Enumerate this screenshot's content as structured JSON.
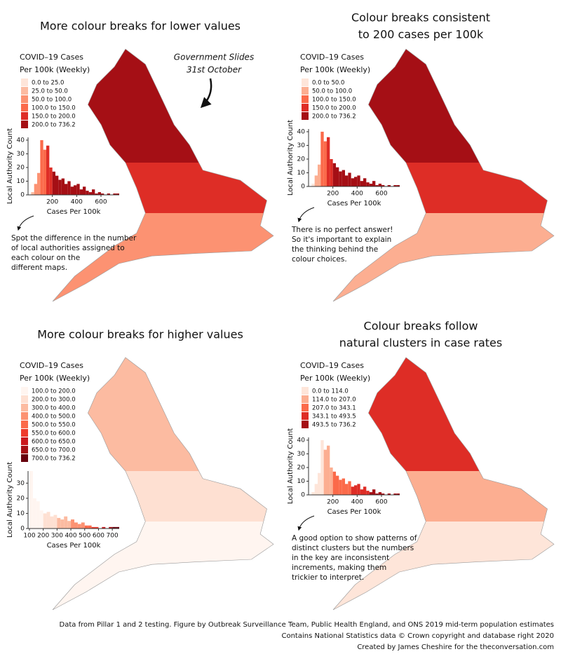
{
  "panels": [
    {
      "title": [
        "More colour breaks for lower values"
      ],
      "legend_title": [
        "COVID–19 Cases",
        "Per 100k (Weekly)"
      ],
      "legend": [
        {
          "label": "0.0 to 25.0",
          "color": "#fee5d9"
        },
        {
          "label": "25.0 to 50.0",
          "color": "#fcbba1"
        },
        {
          "label": "50.0 to 100.0",
          "color": "#fc9272"
        },
        {
          "label": "100.0 to 150.0",
          "color": "#fb6a4a"
        },
        {
          "label": "150.0 to 200.0",
          "color": "#de2d26"
        },
        {
          "label": "200.0 to 736.2",
          "color": "#a50f15"
        }
      ],
      "callout": [
        "Government Slides",
        "31st October"
      ],
      "histogram": {
        "type": "histogram",
        "xlabel": "Cases Per 100k",
        "ylabel": "Local Authority Count",
        "bins": [
          25,
          50,
          75,
          100,
          125,
          150,
          175,
          200,
          225,
          250,
          275,
          300,
          325,
          350,
          375,
          400,
          425,
          450,
          475,
          500,
          525,
          550,
          575,
          600,
          625,
          650,
          675,
          700,
          725,
          750
        ],
        "counts": [
          2,
          8,
          16,
          40,
          33,
          36,
          20,
          17,
          14,
          11,
          12,
          8,
          10,
          6,
          7,
          8,
          4,
          6,
          3,
          2,
          4,
          1,
          2,
          1,
          0,
          1,
          0,
          1,
          1
        ],
        "bar_colors": [
          "#fcbba1",
          "#fc9272",
          "#fc9272",
          "#fb6a4a",
          "#fb6a4a",
          "#de2d26",
          "#de2d26",
          "#a50f15",
          "#a50f15",
          "#a50f15",
          "#a50f15",
          "#a50f15",
          "#a50f15",
          "#a50f15",
          "#a50f15",
          "#a50f15",
          "#a50f15",
          "#a50f15",
          "#a50f15",
          "#a50f15",
          "#a50f15",
          "#a50f15",
          "#a50f15",
          "#a50f15",
          "#a50f15",
          "#a50f15",
          "#a50f15",
          "#a50f15",
          "#a50f15"
        ],
        "xlim": [
          0,
          750
        ],
        "ylim": [
          0,
          42
        ],
        "xticks": [
          200,
          400,
          600
        ],
        "yticks": [
          0,
          10,
          20,
          30,
          40
        ]
      },
      "note": [
        "Spot the difference in the number",
        "of local authorities assigned to",
        "each colour on the",
        "different maps."
      ]
    },
    {
      "title": [
        "Colour breaks consistent",
        "to 200 cases per 100k"
      ],
      "legend_title": [
        "COVID–19 Cases",
        "Per 100k (Weekly)"
      ],
      "legend": [
        {
          "label": "0.0 to 50.0",
          "color": "#fee5d9"
        },
        {
          "label": "50.0 to 100.0",
          "color": "#fcae91"
        },
        {
          "label": "100.0 to 150.0",
          "color": "#fb6a4a"
        },
        {
          "label": "150.0 to 200.0",
          "color": "#de2d26"
        },
        {
          "label": "200.0 to 736.2",
          "color": "#a50f15"
        }
      ],
      "histogram": {
        "type": "histogram",
        "xlabel": "Cases Per 100k",
        "ylabel": "Local Authority Count",
        "bins": [
          25,
          50,
          75,
          100,
          125,
          150,
          175,
          200,
          225,
          250,
          275,
          300,
          325,
          350,
          375,
          400,
          425,
          450,
          475,
          500,
          525,
          550,
          575,
          600,
          625,
          650,
          675,
          700,
          725,
          750
        ],
        "counts": [
          2,
          8,
          16,
          40,
          33,
          36,
          20,
          17,
          14,
          11,
          12,
          8,
          10,
          6,
          7,
          8,
          4,
          6,
          3,
          2,
          4,
          1,
          2,
          1,
          0,
          1,
          0,
          1,
          1
        ],
        "bar_colors": [
          "#fee5d9",
          "#fcae91",
          "#fcae91",
          "#fb6a4a",
          "#fb6a4a",
          "#de2d26",
          "#de2d26",
          "#a50f15",
          "#a50f15",
          "#a50f15",
          "#a50f15",
          "#a50f15",
          "#a50f15",
          "#a50f15",
          "#a50f15",
          "#a50f15",
          "#a50f15",
          "#a50f15",
          "#a50f15",
          "#a50f15",
          "#a50f15",
          "#a50f15",
          "#a50f15",
          "#a50f15",
          "#a50f15",
          "#a50f15",
          "#a50f15",
          "#a50f15",
          "#a50f15"
        ],
        "xlim": [
          0,
          750
        ],
        "ylim": [
          0,
          42
        ],
        "xticks": [
          200,
          400,
          600
        ],
        "yticks": [
          0,
          10,
          20,
          30,
          40
        ]
      },
      "note": [
        "There is no perfect answer!",
        "So it's important to explain",
        "the thinking behind the",
        "colour choices."
      ]
    },
    {
      "title": [
        "More colour breaks for higher values"
      ],
      "legend_title": [
        "COVID–19 Cases",
        "Per 100k (Weekly)"
      ],
      "legend": [
        {
          "label": "100.0 to 200.0",
          "color": "#fff5f0"
        },
        {
          "label": "200.0 to 300.0",
          "color": "#fee0d2"
        },
        {
          "label": "300.0 to 400.0",
          "color": "#fcbba1"
        },
        {
          "label": "400.0 to 500.0",
          "color": "#fc9272"
        },
        {
          "label": "500.0 to 550.0",
          "color": "#fb6a4a"
        },
        {
          "label": "550.0 to 600.0",
          "color": "#ef3b2c"
        },
        {
          "label": "600.0 to 650.0",
          "color": "#cb181d"
        },
        {
          "label": "650.0 to 700.0",
          "color": "#a50f15"
        },
        {
          "label": "700.0 to 736.2",
          "color": "#67000d"
        }
      ],
      "histogram": {
        "type": "histogram",
        "xlabel": "Cases Per 100k",
        "ylabel": "Local Authority Count",
        "bins": [
          100,
          125,
          150,
          175,
          200,
          225,
          250,
          275,
          300,
          325,
          350,
          375,
          400,
          425,
          450,
          475,
          500,
          525,
          550,
          575,
          600,
          625,
          650,
          675,
          700,
          725,
          750
        ],
        "counts": [
          38,
          20,
          18,
          12,
          10,
          11,
          8,
          9,
          7,
          6,
          8,
          5,
          6,
          4,
          3,
          4,
          2,
          2,
          1,
          1,
          0,
          1,
          0,
          1,
          1,
          1
        ],
        "bar_colors": [
          "#fff5f0",
          "#fff5f0",
          "#fff5f0",
          "#fff5f0",
          "#fee0d2",
          "#fee0d2",
          "#fee0d2",
          "#fee0d2",
          "#fcbba1",
          "#fcbba1",
          "#fcbba1",
          "#fcbba1",
          "#fc9272",
          "#fc9272",
          "#fc9272",
          "#fc9272",
          "#fb6a4a",
          "#fb6a4a",
          "#ef3b2c",
          "#ef3b2c",
          "#cb181d",
          "#cb181d",
          "#a50f15",
          "#a50f15",
          "#67000d",
          "#67000d"
        ],
        "xlim": [
          90,
          750
        ],
        "ylim": [
          0,
          38
        ],
        "xticks": [
          100,
          200,
          300,
          400,
          500,
          600,
          700
        ],
        "yticks": [
          0,
          10,
          20,
          30
        ]
      }
    },
    {
      "title": [
        "Colour breaks follow",
        "natural clusters in case rates"
      ],
      "legend_title": [
        "COVID–19 Cases",
        "Per 100k (Weekly)"
      ],
      "legend": [
        {
          "label": "0.0 to 114.0",
          "color": "#fee5d9"
        },
        {
          "label": "114.0 to 207.0",
          "color": "#fcae91"
        },
        {
          "label": "207.0 to 343.1",
          "color": "#fb6a4a"
        },
        {
          "label": "343.1 to 493.5",
          "color": "#de2d26"
        },
        {
          "label": "493.5 to 736.2",
          "color": "#a50f15"
        }
      ],
      "histogram": {
        "type": "histogram",
        "xlabel": "Cases Per 100k",
        "ylabel": "Local Authority Count",
        "bins": [
          25,
          50,
          75,
          100,
          125,
          150,
          175,
          200,
          225,
          250,
          275,
          300,
          325,
          350,
          375,
          400,
          425,
          450,
          475,
          500,
          525,
          550,
          575,
          600,
          625,
          650,
          675,
          700,
          725,
          750
        ],
        "counts": [
          2,
          8,
          16,
          40,
          33,
          36,
          20,
          17,
          14,
          11,
          12,
          8,
          10,
          6,
          7,
          8,
          4,
          6,
          3,
          2,
          4,
          1,
          2,
          1,
          0,
          1,
          0,
          1,
          1
        ],
        "bar_colors": [
          "#fee5d9",
          "#fee5d9",
          "#fee5d9",
          "#fee5d9",
          "#fcae91",
          "#fcae91",
          "#fcae91",
          "#fb6a4a",
          "#fb6a4a",
          "#fb6a4a",
          "#fb6a4a",
          "#fb6a4a",
          "#fb6a4a",
          "#de2d26",
          "#de2d26",
          "#de2d26",
          "#de2d26",
          "#de2d26",
          "#de2d26",
          "#a50f15",
          "#a50f15",
          "#a50f15",
          "#a50f15",
          "#a50f15",
          "#a50f15",
          "#a50f15",
          "#a50f15",
          "#a50f15",
          "#a50f15"
        ],
        "xlim": [
          0,
          750
        ],
        "ylim": [
          0,
          42
        ],
        "xticks": [
          200,
          400,
          600
        ],
        "yticks": [
          0,
          10,
          20,
          30,
          40
        ]
      },
      "note": [
        "A good option to show patterns of",
        "distinct clusters but the numbers",
        "in the key are inconsistent",
        "increments, making them",
        "trickier to interpret."
      ]
    }
  ],
  "footer": [
    "Data from Pillar 1 and 2 testing. Figure by Outbreak Surveillance Team, Public Health England, and ONS 2019 mid-term population estimates",
    "Contains National Statistics data © Crown copyright and database right 2020",
    "Created by James Cheshire for the theconversation.com"
  ]
}
